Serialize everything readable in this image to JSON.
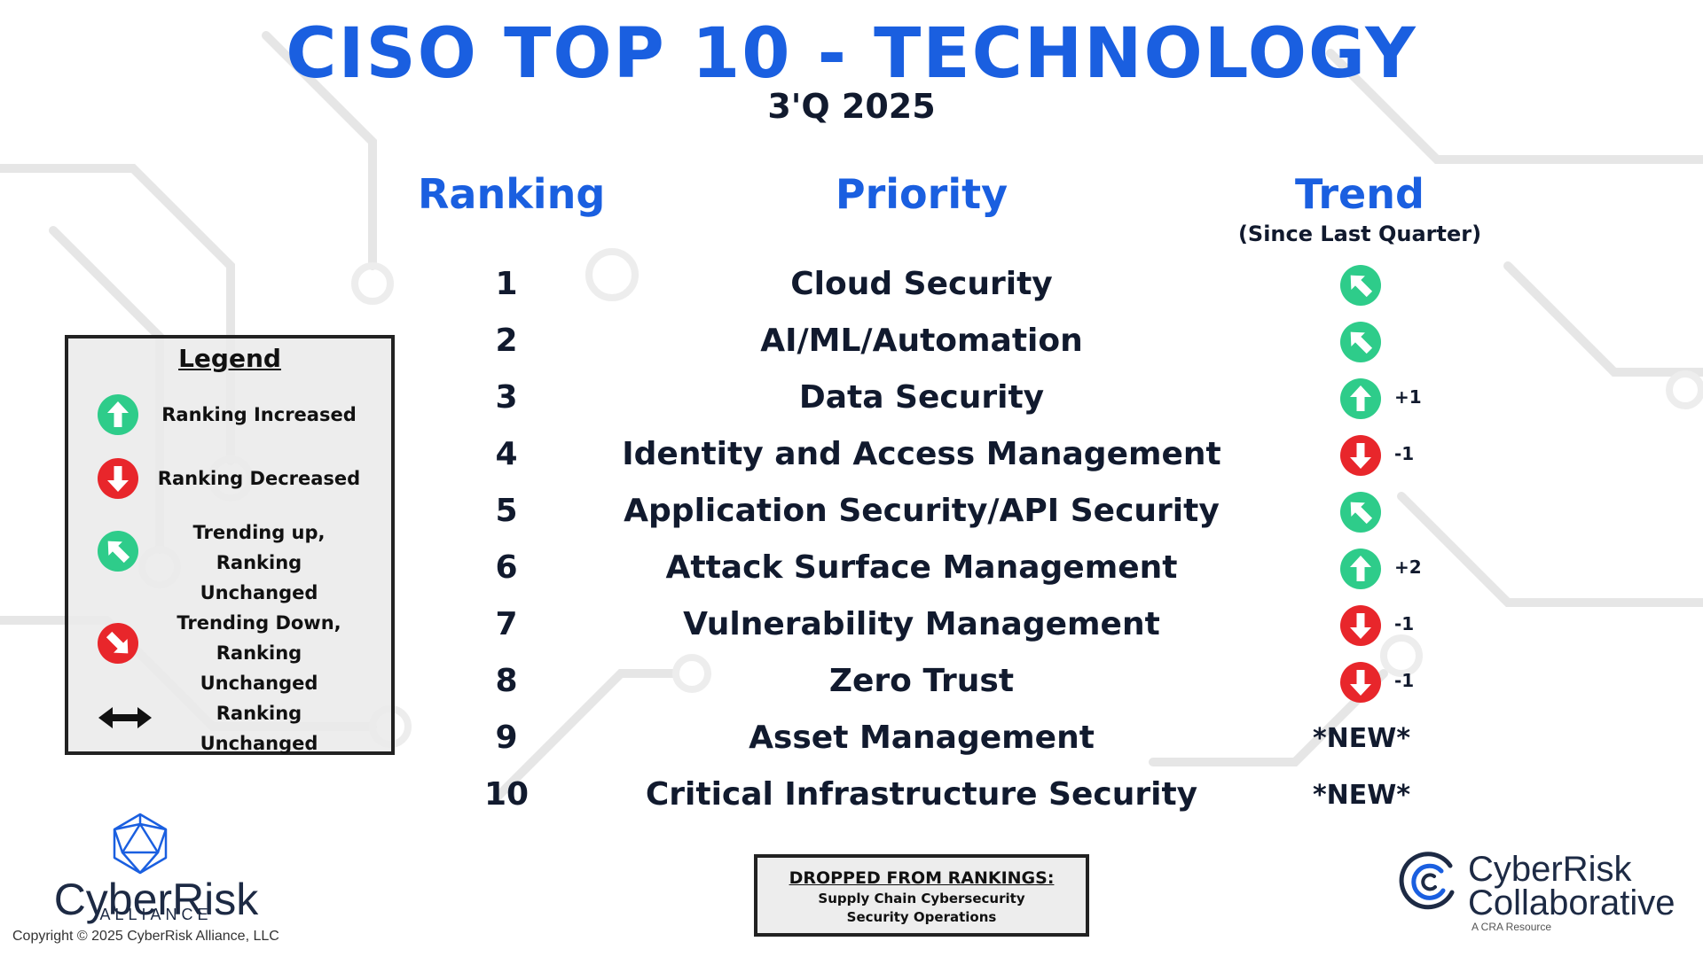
{
  "header": {
    "title": "CISO TOP 10 - TECHNOLOGY",
    "subtitle": "3'Q 2025"
  },
  "columns": {
    "ranking": "Ranking",
    "priority": "Priority",
    "trend": "Trend",
    "trend_sub": "(Since Last Quarter)"
  },
  "rows": [
    {
      "rank": "1",
      "priority": "Cloud Security",
      "trend": "trending-up-icon",
      "delta": ""
    },
    {
      "rank": "2",
      "priority": "AI/ML/Automation",
      "trend": "trending-up-icon",
      "delta": ""
    },
    {
      "rank": "3",
      "priority": "Data Security",
      "trend": "ranking-increased-icon",
      "delta": "+1"
    },
    {
      "rank": "4",
      "priority": "Identity and Access Management",
      "trend": "ranking-decreased-icon",
      "delta": "-1"
    },
    {
      "rank": "5",
      "priority": "Application Security/API Security",
      "trend": "trending-up-icon",
      "delta": ""
    },
    {
      "rank": "6",
      "priority": "Attack Surface Management",
      "trend": "ranking-increased-icon",
      "delta": "+2"
    },
    {
      "rank": "7",
      "priority": "Vulnerability Management",
      "trend": "ranking-decreased-icon",
      "delta": "-1"
    },
    {
      "rank": "8",
      "priority": "Zero Trust",
      "trend": "ranking-decreased-icon",
      "delta": "-1"
    },
    {
      "rank": "9",
      "priority": "Asset Management",
      "trend": "new",
      "new_label": "*NEW*"
    },
    {
      "rank": "10",
      "priority": "Critical Infrastructure Security",
      "trend": "new",
      "new_label": "*NEW*"
    }
  ],
  "legend": {
    "title": "Legend",
    "items": [
      {
        "icon": "ranking-increased-icon",
        "lines": [
          "Ranking Increased"
        ]
      },
      {
        "icon": "ranking-decreased-icon",
        "lines": [
          "Ranking Decreased"
        ]
      },
      {
        "icon": "trending-up-icon",
        "lines": [
          "Trending up,",
          "Ranking Unchanged"
        ]
      },
      {
        "icon": "trending-down-icon",
        "lines": [
          "Trending Down,",
          "Ranking Unchanged"
        ]
      },
      {
        "icon": "double-arrow-icon",
        "lines": [
          "Ranking Unchanged"
        ]
      }
    ]
  },
  "dropped": {
    "title": "DROPPED FROM RANKINGS:",
    "items": [
      "Supply Chain Cybersecurity",
      "Security Operations"
    ]
  },
  "logos": {
    "cra_name": "CyberRisk",
    "cra_sub": "ALLIANCE",
    "copyright": "Copyright © 2025 CyberRisk Alliance, LLC",
    "crc_line1": "CyberRisk",
    "crc_line2": "Collaborative",
    "crc_resource": "A CRA Resource"
  },
  "colors": {
    "title_blue": "#1a5fe0",
    "green": "#2ecc8a",
    "red": "#e8262b",
    "text_dark": "#111a2e"
  }
}
